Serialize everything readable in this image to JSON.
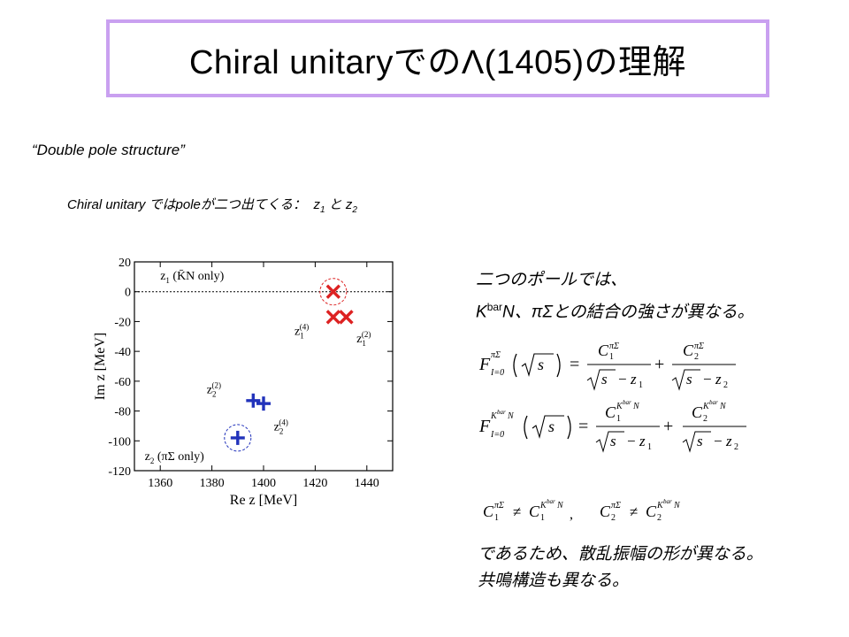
{
  "title": "Chiral unitaryでのΛ(1405)の理解",
  "subtitle": "“Double pole structure”",
  "line2": {
    "prefix": "Chiral unitary ではpoleが二つ出てくる：",
    "z_sym": "z",
    "sub1": "1",
    "and": "と",
    "sub2": "2"
  },
  "note": {
    "line1": "二つのポールでは、",
    "k": "K",
    "bar": "bar",
    "rest": "N、πΣとの結合の強さが異なる。"
  },
  "equations": {
    "F": "F",
    "I0": "I=0",
    "piSigma": "πΣ",
    "KbarN": "K",
    "KbarN_sup": "bar",
    "N": "N",
    "C": "C",
    "s": "s",
    "z": "z",
    "one": "1",
    "two": "2",
    "eqs": "=",
    "plus": "+",
    "minus": "−",
    "neq": "≠",
    "comma": ","
  },
  "conclusion": {
    "line1": "であるため、散乱振幅の形が異なる。",
    "line2": "共鳴構造も異なる。"
  },
  "chart_data": {
    "type": "scatter",
    "xlabel": "Re z [MeV]",
    "ylabel": "Im z [MeV]",
    "xlim": [
      1350,
      1450
    ],
    "ylim": [
      -120,
      20
    ],
    "xticks": [
      1360,
      1380,
      1400,
      1420,
      1440
    ],
    "yticks": [
      20,
      0,
      -20,
      -40,
      -60,
      -80,
      -100,
      -120
    ],
    "reference_line_y": 0,
    "series": [
      {
        "marker": "x",
        "color": "#dd2222",
        "points": [
          [
            1427,
            0
          ],
          [
            1427,
            -17
          ],
          [
            1432,
            -17
          ]
        ]
      },
      {
        "marker": "+",
        "color": "#2233bb",
        "points": [
          [
            1396,
            -73
          ],
          [
            1400,
            -75
          ],
          [
            1390,
            -98
          ]
        ]
      }
    ],
    "circled": [
      [
        1427,
        0,
        "#dd2222"
      ],
      [
        1390,
        -98,
        "#2233bb"
      ]
    ],
    "annotations": [
      {
        "text": "z",
        "sub": "1",
        "tail": " (K̄N only)",
        "x": 1360,
        "y": 8
      },
      {
        "text": "z",
        "sub": "1",
        "sup": "(4)",
        "tail": "",
        "x": 1412,
        "y": -29
      },
      {
        "text": "z",
        "sub": "1",
        "sup": "(2)",
        "tail": "",
        "x": 1436,
        "y": -34
      },
      {
        "text": "z",
        "sub": "2",
        "sup": "(2)",
        "tail": "",
        "x": 1378,
        "y": -68
      },
      {
        "text": "z",
        "sub": "2",
        "sup": "(4)",
        "tail": "",
        "x": 1404,
        "y": -93
      },
      {
        "text": "z",
        "sub": "2",
        "tail": " (πΣ only)",
        "x": 1354,
        "y": -113
      }
    ]
  }
}
